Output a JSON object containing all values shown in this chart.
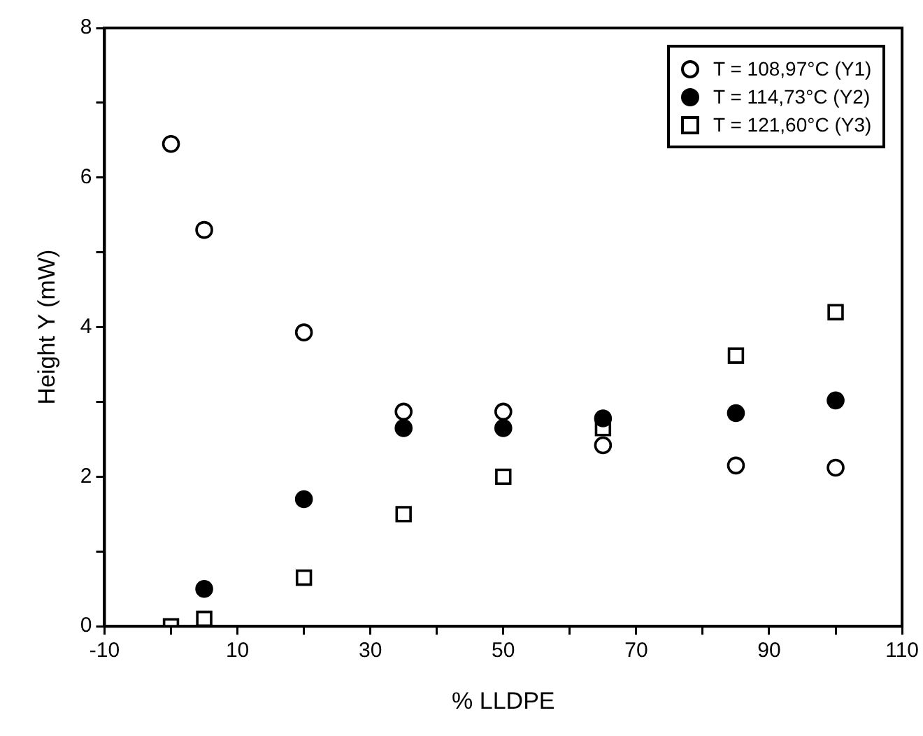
{
  "chart_data": {
    "type": "scatter",
    "xlabel": "% LLDPE",
    "ylabel": "Height Y (mW)",
    "xlim": [
      -10,
      110
    ],
    "xticks": [
      -10,
      {
        "value": 0,
        "label": null
      },
      10,
      {
        "value": 20,
        "label": null
      },
      30,
      {
        "value": 40,
        "label": null
      },
      50,
      {
        "value": 60,
        "label": null
      },
      70,
      {
        "value": 80,
        "label": null
      },
      90,
      {
        "value": 100,
        "label": null
      },
      110
    ],
    "ylim": [
      0,
      8
    ],
    "yticks": [
      0,
      {
        "value": 1,
        "label": null
      },
      2,
      {
        "value": 3,
        "label": null
      },
      4,
      {
        "value": 5,
        "label": null
      },
      6,
      {
        "value": 7,
        "label": null
      },
      8
    ],
    "grid": false,
    "legend": "top right",
    "series": [
      {
        "name": "T = 108,97°C (Y1)",
        "color": "#ffffff",
        "marker": "circle",
        "x": [
          0,
          5,
          20,
          35,
          50,
          65,
          85,
          100
        ],
        "values": [
          6.45,
          5.3,
          3.93,
          2.87,
          2.87,
          2.42,
          2.15,
          2.12
        ]
      },
      {
        "name": "T = 114,73°C (Y2)",
        "color": "#000000",
        "marker": "circle",
        "x": [
          5,
          20,
          35,
          50,
          65,
          85,
          100
        ],
        "values": [
          0.5,
          1.7,
          2.65,
          2.65,
          2.78,
          2.85,
          3.02
        ]
      },
      {
        "name": "T = 121,60°C (Y3)",
        "color": "#ffffff",
        "marker": "square",
        "x": [
          0,
          5,
          20,
          35,
          50,
          65,
          85,
          100
        ],
        "values": [
          0,
          0.1,
          0.65,
          1.5,
          2.0,
          2.65,
          3.62,
          4.2
        ]
      }
    ]
  }
}
